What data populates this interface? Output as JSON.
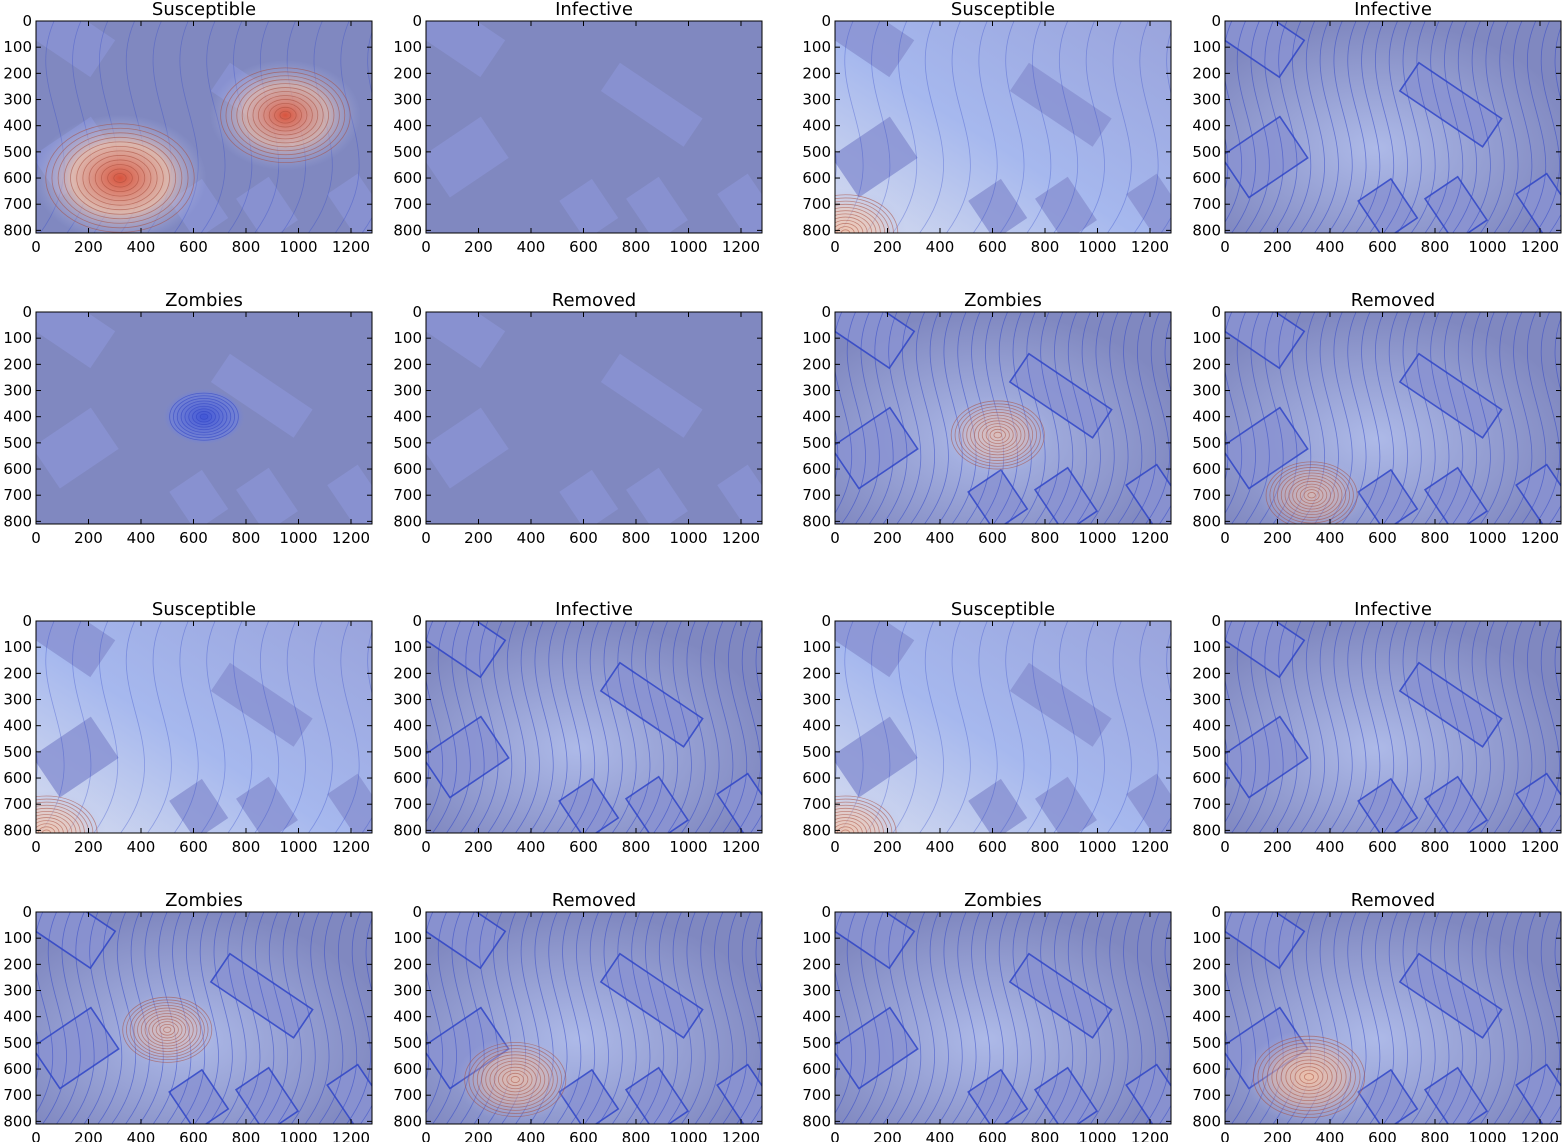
{
  "chart_data": [
    {
      "type": "heatmap",
      "title": "Susceptible",
      "xticks": [
        "0",
        "200",
        "400",
        "600",
        "800",
        "1000",
        "1200"
      ],
      "yticks": [
        "0",
        "100",
        "200",
        "300",
        "400",
        "500",
        "600",
        "700",
        "800"
      ],
      "xlim": [
        0,
        1280
      ],
      "ylim": [
        0,
        810
      ],
      "pattern": "hotspots",
      "blobs": [
        {
          "x": 320,
          "y": 600,
          "level": 1.0
        },
        {
          "x": 950,
          "y": 360,
          "level": 0.72
        }
      ]
    },
    {
      "type": "heatmap",
      "title": "Infective",
      "xticks": [
        "0",
        "200",
        "400",
        "600",
        "800",
        "1000",
        "1200"
      ],
      "yticks": [
        "0",
        "100",
        "200",
        "300",
        "400",
        "500",
        "600",
        "700",
        "800"
      ],
      "xlim": [
        0,
        1280
      ],
      "ylim": [
        0,
        810
      ],
      "pattern": "empty",
      "blobs": []
    },
    {
      "type": "heatmap",
      "title": "Susceptible",
      "xticks": [
        "0",
        "200",
        "400",
        "600",
        "800",
        "1000",
        "1200"
      ],
      "yticks": [
        "0",
        "100",
        "200",
        "300",
        "400",
        "500",
        "600",
        "700",
        "800"
      ],
      "xlim": [
        0,
        1280
      ],
      "ylim": [
        0,
        810
      ],
      "pattern": "diffuse",
      "blobs": [
        {
          "x": 40,
          "y": 810,
          "level": 0.35
        }
      ]
    },
    {
      "type": "heatmap",
      "title": "Infective",
      "xticks": [
        "0",
        "200",
        "400",
        "600",
        "800",
        "1000",
        "1200"
      ],
      "yticks": [
        "0",
        "100",
        "200",
        "300",
        "400",
        "500",
        "600",
        "700",
        "800"
      ],
      "xlim": [
        0,
        1280
      ],
      "ylim": [
        0,
        810
      ],
      "pattern": "walls",
      "blobs": []
    },
    {
      "type": "heatmap",
      "title": "Zombies",
      "xticks": [
        "0",
        "200",
        "400",
        "600",
        "800",
        "1000",
        "1200"
      ],
      "yticks": [
        "0",
        "100",
        "200",
        "300",
        "400",
        "500",
        "600",
        "700",
        "800"
      ],
      "xlim": [
        0,
        1280
      ],
      "ylim": [
        0,
        810
      ],
      "pattern": "cold-spot",
      "blobs": [
        {
          "x": 640,
          "y": 400,
          "level": -0.6
        }
      ]
    },
    {
      "type": "heatmap",
      "title": "Removed",
      "xticks": [
        "0",
        "200",
        "400",
        "600",
        "800",
        "1000",
        "1200"
      ],
      "yticks": [
        "0",
        "100",
        "200",
        "300",
        "400",
        "500",
        "600",
        "700",
        "800"
      ],
      "xlim": [
        0,
        1280
      ],
      "ylim": [
        0,
        810
      ],
      "pattern": "empty",
      "blobs": []
    },
    {
      "type": "heatmap",
      "title": "Zombies",
      "xticks": [
        "0",
        "200",
        "400",
        "600",
        "800",
        "1000",
        "1200"
      ],
      "yticks": [
        "0",
        "100",
        "200",
        "300",
        "400",
        "500",
        "600",
        "700",
        "800"
      ],
      "xlim": [
        0,
        1280
      ],
      "ylim": [
        0,
        810
      ],
      "pattern": "walls",
      "blobs": [
        {
          "x": 620,
          "y": 470,
          "level": 0.18
        }
      ]
    },
    {
      "type": "heatmap",
      "title": "Removed",
      "xticks": [
        "0",
        "200",
        "400",
        "600",
        "800",
        "1000",
        "1200"
      ],
      "yticks": [
        "0",
        "100",
        "200",
        "300",
        "400",
        "500",
        "600",
        "700",
        "800"
      ],
      "xlim": [
        0,
        1280
      ],
      "ylim": [
        0,
        810
      ],
      "pattern": "walls",
      "blobs": [
        {
          "x": 330,
          "y": 700,
          "level": 0.15
        }
      ]
    },
    {
      "type": "heatmap",
      "title": "Susceptible",
      "xticks": [
        "0",
        "200",
        "400",
        "600",
        "800",
        "1000",
        "1200"
      ],
      "yticks": [
        "0",
        "100",
        "200",
        "300",
        "400",
        "500",
        "600",
        "700",
        "800"
      ],
      "xlim": [
        0,
        1280
      ],
      "ylim": [
        0,
        810
      ],
      "pattern": "diffuse",
      "blobs": [
        {
          "x": 40,
          "y": 810,
          "level": 0.3
        }
      ]
    },
    {
      "type": "heatmap",
      "title": "Infective",
      "xticks": [
        "0",
        "200",
        "400",
        "600",
        "800",
        "1000",
        "1200"
      ],
      "yticks": [
        "0",
        "100",
        "200",
        "300",
        "400",
        "500",
        "600",
        "700",
        "800"
      ],
      "xlim": [
        0,
        1280
      ],
      "ylim": [
        0,
        810
      ],
      "pattern": "walls",
      "blobs": []
    },
    {
      "type": "heatmap",
      "title": "Susceptible",
      "xticks": [
        "0",
        "200",
        "400",
        "600",
        "800",
        "1000",
        "1200"
      ],
      "yticks": [
        "0",
        "100",
        "200",
        "300",
        "400",
        "500",
        "600",
        "700",
        "800"
      ],
      "xlim": [
        0,
        1280
      ],
      "ylim": [
        0,
        810
      ],
      "pattern": "diffuse",
      "blobs": [
        {
          "x": 40,
          "y": 810,
          "level": 0.3
        }
      ]
    },
    {
      "type": "heatmap",
      "title": "Infective",
      "xticks": [
        "0",
        "200",
        "400",
        "600",
        "800",
        "1000",
        "1200"
      ],
      "yticks": [
        "0",
        "100",
        "200",
        "300",
        "400",
        "500",
        "600",
        "700",
        "800"
      ],
      "xlim": [
        0,
        1280
      ],
      "ylim": [
        0,
        810
      ],
      "pattern": "walls",
      "blobs": []
    },
    {
      "type": "heatmap",
      "title": "Zombies",
      "xticks": [
        "0",
        "200",
        "400",
        "600",
        "800",
        "1000",
        "1200"
      ],
      "yticks": [
        "0",
        "100",
        "200",
        "300",
        "400",
        "500",
        "600",
        "700",
        "800"
      ],
      "xlim": [
        0,
        1280
      ],
      "ylim": [
        0,
        810
      ],
      "pattern": "walls",
      "blobs": [
        {
          "x": 500,
          "y": 450,
          "level": 0.12
        }
      ]
    },
    {
      "type": "heatmap",
      "title": "Removed",
      "xticks": [
        "0",
        "200",
        "400",
        "600",
        "800",
        "1000",
        "1200"
      ],
      "yticks": [
        "0",
        "100",
        "200",
        "300",
        "400",
        "500",
        "600",
        "700",
        "800"
      ],
      "xlim": [
        0,
        1280
      ],
      "ylim": [
        0,
        810
      ],
      "pattern": "walls",
      "blobs": [
        {
          "x": 340,
          "y": 640,
          "level": 0.3
        }
      ]
    },
    {
      "type": "heatmap",
      "title": "Zombies",
      "xticks": [
        "0",
        "200",
        "400",
        "600",
        "800",
        "1000",
        "1200"
      ],
      "yticks": [
        "0",
        "100",
        "200",
        "300",
        "400",
        "500",
        "600",
        "700",
        "800"
      ],
      "xlim": [
        0,
        1280
      ],
      "ylim": [
        0,
        810
      ],
      "pattern": "walls",
      "blobs": []
    },
    {
      "type": "heatmap",
      "title": "Removed",
      "xticks": [
        "0",
        "200",
        "400",
        "600",
        "800",
        "1000",
        "1200"
      ],
      "yticks": [
        "0",
        "100",
        "200",
        "300",
        "400",
        "500",
        "600",
        "700",
        "800"
      ],
      "xlim": [
        0,
        1280
      ],
      "ylim": [
        0,
        810
      ],
      "pattern": "walls",
      "blobs": [
        {
          "x": 320,
          "y": 630,
          "level": 0.45
        }
      ]
    }
  ],
  "colors": {
    "base": "#8088c0",
    "building": "#8a93d2",
    "contour": "#2f45c8",
    "hot": "#d8543e",
    "warm": "#f2c2a8",
    "cool": "#a6b8ee"
  }
}
